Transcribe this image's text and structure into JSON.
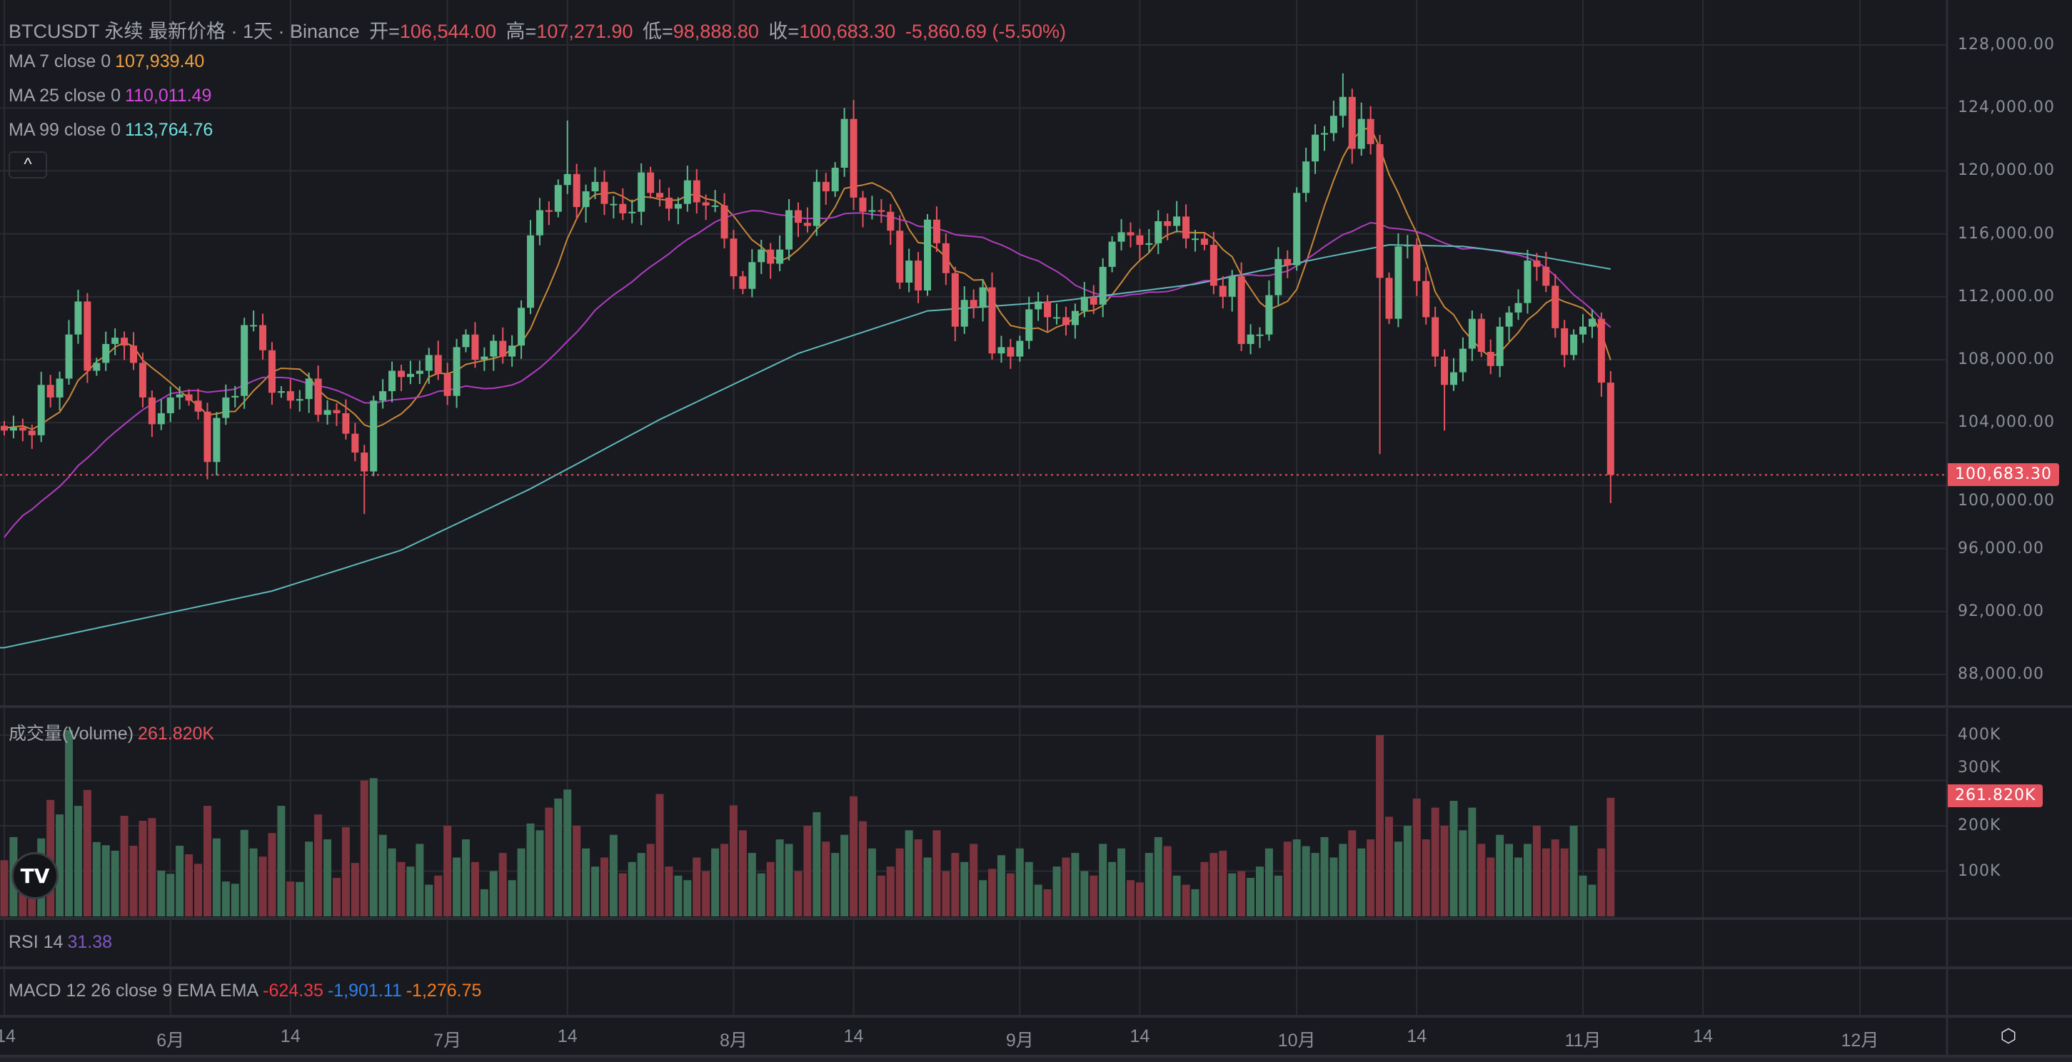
{
  "header": {
    "symbol_title": "BTCUSDT 永续 最新价格 · 1天 · Binance",
    "open_label": "开=",
    "open": "106,544.00",
    "high_label": "高=",
    "high": "107,271.90",
    "low_label": "低=",
    "low": "98,888.80",
    "close_label": "收=",
    "close": "100,683.30",
    "change": "-5,860.69 (-5.50%)"
  },
  "indicators": {
    "ma7": {
      "label": "MA 7 close 0",
      "value": "107,939.40",
      "color": "#f0a040"
    },
    "ma25": {
      "label": "MA 25 close 0",
      "value": "110,011.49",
      "color": "#d646e0"
    },
    "ma99": {
      "label": "MA 99 close 0",
      "value": "113,764.76",
      "color": "#6fe0e0"
    },
    "collapse_icon": "^",
    "volume": {
      "label": "成交量(Volume)",
      "value": "261.820K"
    },
    "rsi": {
      "label": "RSI 14",
      "value": "31.38",
      "color": "#7e57c2"
    },
    "macd": {
      "label": "MACD 12 26 close 9 EMA EMA",
      "macd": "-624.35",
      "signal": "-1,901.11",
      "hist": "-1,276.75"
    }
  },
  "price_axis": {
    "labels": [
      "128,000.00",
      "124,000.00",
      "120,000.00",
      "116,000.00",
      "112,000.00",
      "108,000.00",
      "104,000.00",
      "100,000.00",
      "96,000.00",
      "92,000.00",
      "88,000.00"
    ],
    "last_price_tag": "100,683.30"
  },
  "volume_axis": {
    "labels": [
      "400K",
      "300K",
      "200K",
      "100K"
    ],
    "last_volume_tag": "261.820K"
  },
  "time_axis": {
    "labels": [
      "14",
      "6月",
      "14",
      "7月",
      "14",
      "8月",
      "14",
      "9月",
      "14",
      "10月",
      "14",
      "11月",
      "14",
      "12月"
    ]
  },
  "logo": "TV",
  "settings_icon": "eye-settings-icon",
  "colors": {
    "up": "#5bb98b",
    "down": "#e5535f",
    "vol_up": "#3a6b55",
    "vol_down": "#7a323d",
    "background": "#191a1f"
  },
  "chart_data": {
    "type": "candlestick",
    "title": "BTCUSDT 永续 1天 Binance",
    "x_start": "2025-05-14",
    "x_end": "2025-11-04",
    "price_unit": "thousand USDT",
    "ylim": [
      86,
      129
    ],
    "closes_k": [
      103.5,
      103.7,
      103.5,
      103.2,
      106.4,
      105.6,
      106.8,
      109.6,
      111.7,
      107.3,
      107.8,
      109.0,
      109.4,
      108.9,
      107.8,
      105.6,
      103.9,
      104.6,
      105.6,
      105.8,
      105.4,
      104.7,
      101.5,
      104.3,
      105.6,
      105.7,
      110.2,
      110.2,
      108.6,
      105.9,
      106.0,
      105.4,
      105.5,
      106.8,
      104.5,
      104.8,
      104.6,
      103.3,
      102.1,
      100.9,
      105.4,
      106.0,
      107.3,
      106.9,
      107.1,
      107.3,
      108.3,
      107.1,
      105.7,
      108.8,
      109.6,
      108.0,
      108.2,
      109.2,
      108.2,
      108.9,
      111.3,
      115.9,
      117.5,
      117.4,
      119.1,
      119.8,
      117.7,
      118.7,
      119.3,
      117.9,
      117.9,
      117.3,
      117.4,
      119.9,
      118.6,
      118.3,
      117.6,
      117.9,
      119.4,
      118.0,
      117.8,
      117.8,
      115.7,
      113.3,
      112.5,
      114.2,
      115.0,
      114.1,
      115.0,
      117.5,
      116.7,
      116.5,
      119.3,
      118.7,
      120.2,
      123.3,
      118.3,
      117.4,
      117.5,
      117.4,
      116.2,
      112.9,
      114.3,
      112.4,
      116.9,
      115.4,
      113.5,
      110.1,
      111.8,
      111.3,
      112.6,
      108.4,
      108.8,
      108.2,
      109.2,
      111.2,
      111.7,
      110.7,
      110.7,
      110.2,
      111.1,
      112.0,
      111.5,
      113.9,
      115.5,
      116.1,
      115.9,
      115.3,
      115.4,
      116.8,
      116.5,
      117.1,
      115.7,
      115.7,
      115.3,
      112.7,
      112.0,
      113.3,
      109.0,
      109.6,
      109.6,
      112.1,
      114.4,
      114.0,
      118.6,
      120.6,
      122.3,
      122.4,
      123.5,
      124.7,
      121.4,
      123.3,
      121.7,
      113.2,
      110.6,
      115.2,
      115.3,
      113.0,
      110.7,
      108.2,
      106.4,
      107.2,
      108.7,
      110.6,
      108.5,
      107.6,
      110.1,
      111.0,
      111.6,
      114.3,
      113.9,
      112.7,
      110.0,
      108.3,
      109.6,
      110.1,
      110.6,
      106.544,
      100.683
    ],
    "first_open_k": 103.8,
    "wick_overrides_k": [
      {
        "i": 22,
        "low": 100.4
      },
      {
        "i": 39,
        "low": 98.2
      },
      {
        "i": 61,
        "high": 123.2
      },
      {
        "i": 91,
        "high": 124.0
      },
      {
        "i": 92,
        "high": 124.5
      },
      {
        "i": 145,
        "high": 126.2
      },
      {
        "i": 149,
        "low": 102.0
      },
      {
        "i": 156,
        "low": 103.5
      },
      {
        "i": 174,
        "high": 107.272,
        "low": 98.889
      }
    ],
    "ma_warmup_closes_k": [
      85.2,
      87.5,
      93.4,
      93.7,
      93.9,
      94.7,
      94.6,
      93.8,
      94.9,
      94.3,
      94.2,
      96.5,
      96.9,
      95.9,
      94.3,
      94.7,
      96.8,
      97.0,
      103.2,
      103.0,
      104.8,
      104.1,
      102.8,
      104.2
    ],
    "ma99_keyframes_k": [
      [
        0,
        89.7
      ],
      [
        29,
        93.3
      ],
      [
        43,
        95.9
      ],
      [
        57,
        99.8
      ],
      [
        71,
        104.2
      ],
      [
        86,
        108.4
      ],
      [
        100,
        111.1
      ],
      [
        114,
        111.7
      ],
      [
        129,
        112.8
      ],
      [
        143,
        114.5
      ],
      [
        150,
        115.3
      ],
      [
        158,
        115.2
      ],
      [
        165,
        114.7
      ],
      [
        174,
        113.76
      ]
    ],
    "volumes_k": [
      124,
      175,
      120,
      110,
      172,
      257,
      225,
      411,
      244,
      279,
      164,
      157,
      145,
      222,
      156,
      211,
      217,
      101,
      94,
      156,
      137,
      116,
      244,
      172,
      77,
      72,
      191,
      150,
      132,
      184,
      244,
      77,
      76,
      165,
      225,
      170,
      85,
      197,
      118,
      300,
      305,
      180,
      150,
      120,
      110,
      160,
      70,
      90,
      200,
      130,
      170,
      120,
      60,
      100,
      140,
      80,
      150,
      205,
      190,
      240,
      260,
      280,
      200,
      150,
      110,
      130,
      180,
      95,
      120,
      140,
      160,
      270,
      110,
      90,
      80,
      130,
      100,
      150,
      160,
      245,
      190,
      140,
      95,
      120,
      170,
      160,
      100,
      200,
      230,
      165,
      140,
      180,
      265,
      210,
      150,
      90,
      110,
      150,
      190,
      170,
      130,
      190,
      100,
      140,
      120,
      160,
      80,
      105,
      135,
      95,
      150,
      120,
      70,
      60,
      110,
      130,
      140,
      100,
      90,
      160,
      120,
      150,
      80,
      75,
      140,
      175,
      155,
      90,
      70,
      60,
      120,
      140,
      145,
      95,
      100,
      85,
      110,
      150,
      90,
      165,
      170,
      155,
      140,
      175,
      130,
      160,
      190,
      150,
      170,
      400,
      220,
      165,
      200,
      260,
      170,
      240,
      200,
      255,
      190,
      240,
      160,
      130,
      180,
      160,
      130,
      160,
      200,
      150,
      170,
      150,
      200,
      90,
      70,
      150,
      261.82
    ],
    "volume_ylim_k": [
      0,
      450
    ]
  }
}
